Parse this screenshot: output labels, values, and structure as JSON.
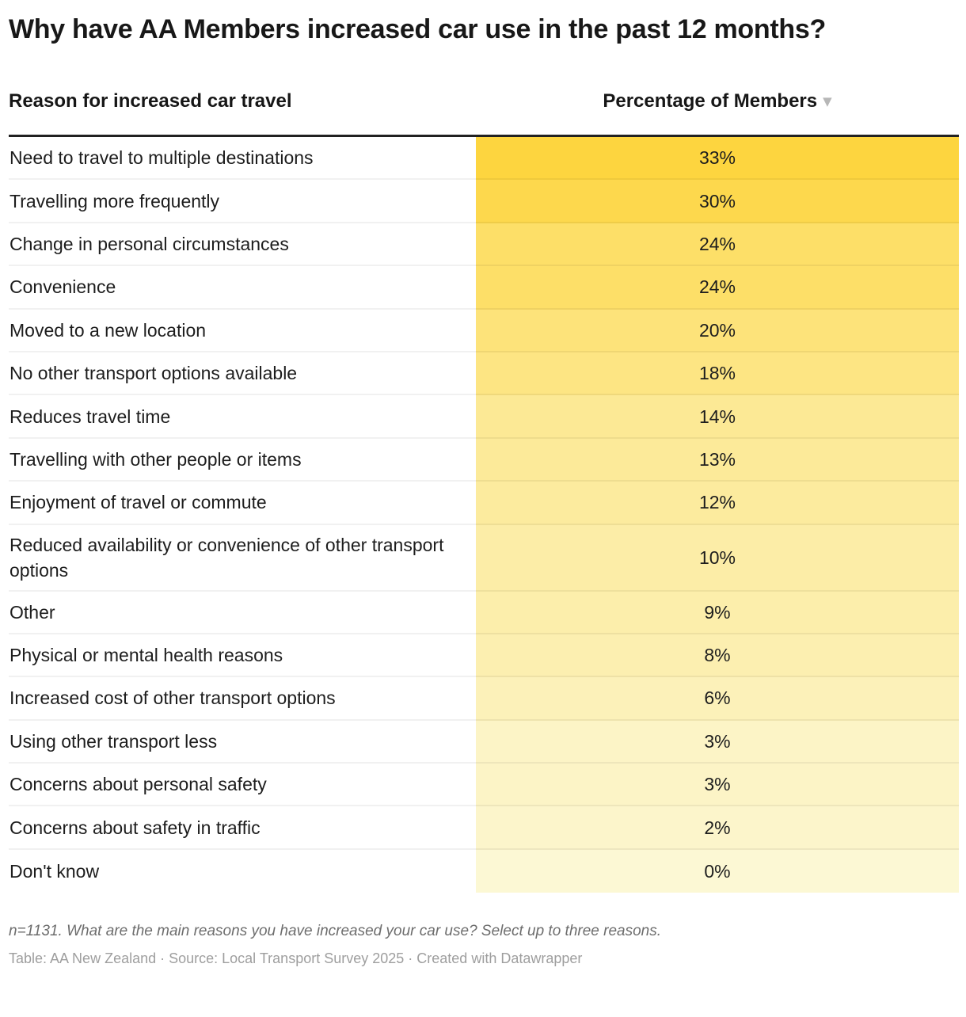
{
  "title": "Why have AA Members increased car use in the past 12 months?",
  "header": {
    "reason_column": "Reason for increased car travel",
    "percentage_column": "Percentage of Members",
    "sort_icon": "▼",
    "sort_direction": "descending"
  },
  "chart_data": {
    "type": "table",
    "title": "Why have AA Members increased car use in the past 12 months?",
    "columns": [
      "Reason for increased car travel",
      "Percentage of Members"
    ],
    "unit": "%",
    "sort": {
      "column": "Percentage of Members",
      "direction": "desc"
    },
    "heatmap": {
      "min": 0,
      "max": 33,
      "min_color": "#FCF8D4",
      "max_color": "#FDD53F"
    },
    "rows": [
      {
        "reason": "Need to travel to multiple destinations",
        "value": 33,
        "label": "33%",
        "cell_color": "#FDD53F"
      },
      {
        "reason": "Travelling more frequently",
        "value": 30,
        "label": "30%",
        "cell_color": "#FDD84D"
      },
      {
        "reason": "Change in personal circumstances",
        "value": 24,
        "label": "24%",
        "cell_color": "#FDDF68"
      },
      {
        "reason": "Convenience",
        "value": 24,
        "label": "24%",
        "cell_color": "#FDDF68"
      },
      {
        "reason": "Moved to a new location",
        "value": 20,
        "label": "20%",
        "cell_color": "#FDE37A"
      },
      {
        "reason": "No other transport options available",
        "value": 18,
        "label": "18%",
        "cell_color": "#FDE583"
      },
      {
        "reason": "Reduces travel time",
        "value": 14,
        "label": "14%",
        "cell_color": "#FCE995"
      },
      {
        "reason": "Travelling with other people or items",
        "value": 13,
        "label": "13%",
        "cell_color": "#FCEA99"
      },
      {
        "reason": "Enjoyment of travel or commute",
        "value": 12,
        "label": "12%",
        "cell_color": "#FCEB9E"
      },
      {
        "reason": "Reduced availability or convenience of other transport options",
        "value": 10,
        "label": "10%",
        "cell_color": "#FCEDA7"
      },
      {
        "reason": "Other",
        "value": 9,
        "label": "9%",
        "cell_color": "#FCEEAB"
      },
      {
        "reason": "Physical or mental health reasons",
        "value": 8,
        "label": "8%",
        "cell_color": "#FCEFB0"
      },
      {
        "reason": "Increased cost of other transport options",
        "value": 6,
        "label": "6%",
        "cell_color": "#FCF1B9"
      },
      {
        "reason": "Using other transport less",
        "value": 3,
        "label": "3%",
        "cell_color": "#FCF4C6"
      },
      {
        "reason": "Concerns about personal safety",
        "value": 3,
        "label": "3%",
        "cell_color": "#FCF4C6"
      },
      {
        "reason": "Concerns about safety in traffic",
        "value": 2,
        "label": "2%",
        "cell_color": "#FCF5CB"
      },
      {
        "reason": "Don't know",
        "value": 0,
        "label": "0%",
        "cell_color": "#FCF8D4"
      }
    ]
  },
  "footnote": "n=1131. What are the main reasons you have increased your car use? Select up to three reasons.",
  "source": "Table: AA New Zealand · Source: Local Transport Survey 2025 · Created with Datawrapper",
  "colors": {
    "header_rule": "#212121",
    "row_divider": "rgba(0,0,0,0.055)",
    "body_text": "#1d1d1d",
    "footnote_text": "#6d6d6d",
    "source_text": "#9e9e9e",
    "sort_arrow": "#b7b7b7"
  }
}
